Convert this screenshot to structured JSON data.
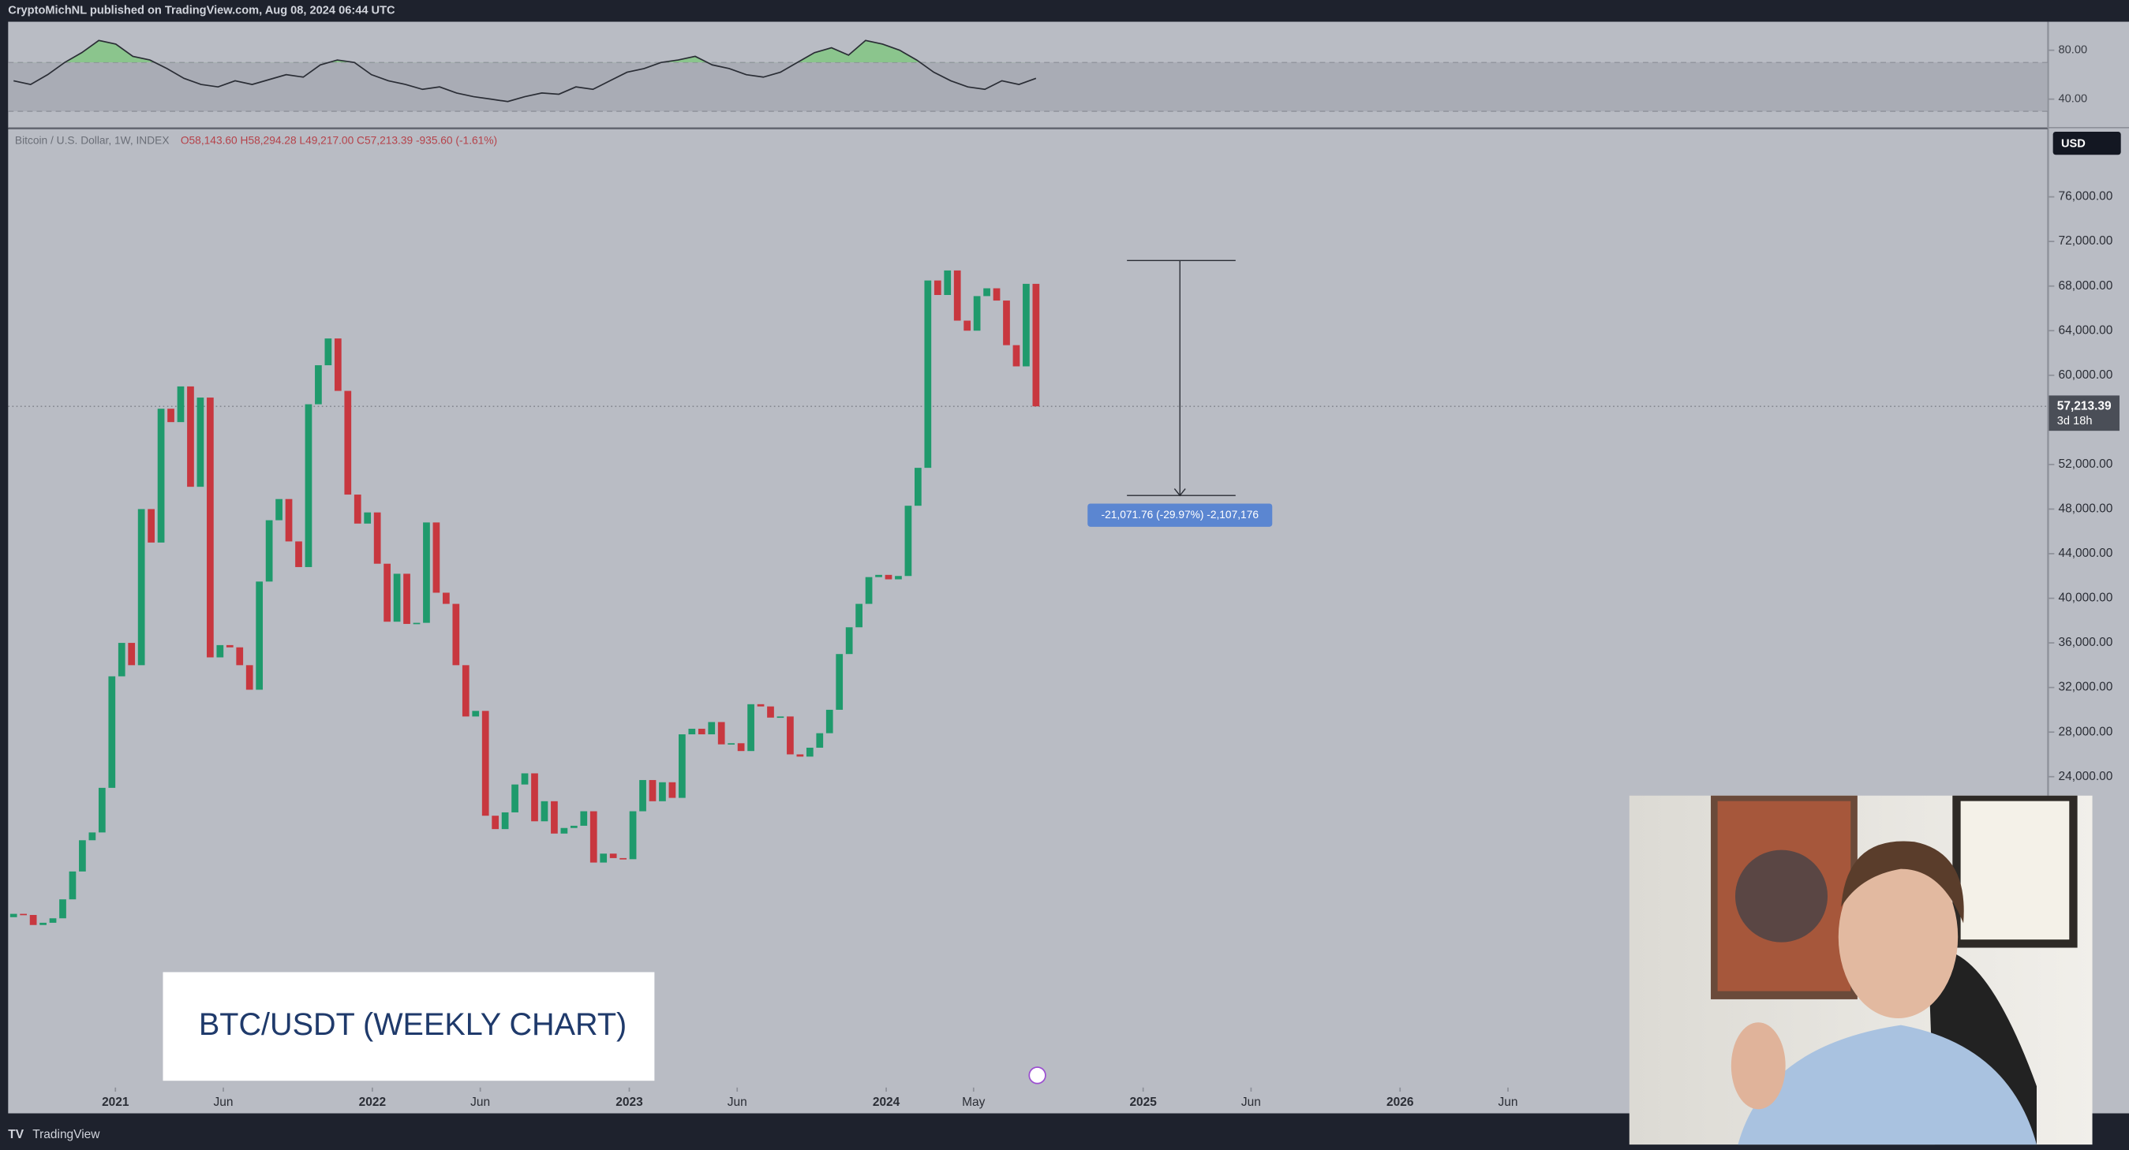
{
  "header": {
    "publisher": "CryptoMichNL published on TradingView.com, Aug 08, 2024 06:44 UTC"
  },
  "legend": {
    "symbol": "Bitcoin / U.S. Dollar, 1W, INDEX",
    "ohlc": "O58,143.60 H58,294.28 L49,217.00 C57,213.39 -935.60 (-1.61%)"
  },
  "chart": {
    "type": "candlestick",
    "up_color": "#1f9a6c",
    "down_color": "#c8373f",
    "open": 11400,
    "closes": [
      11700,
      11600,
      10700,
      10900,
      11300,
      13000,
      15500,
      18300,
      19000,
      23000,
      33000,
      36000,
      34000,
      48000,
      45000,
      57000,
      55800,
      59000,
      50000,
      58000,
      34700,
      35800,
      35600,
      34000,
      31800,
      41500,
      47000,
      48900,
      45100,
      42800,
      57400,
      60900,
      63300,
      58600,
      49300,
      46700,
      47700,
      43100,
      37900,
      42200,
      37700,
      37800,
      46800,
      40500,
      39500,
      34000,
      29400,
      29900,
      20500,
      19300,
      20800,
      23300,
      24300,
      20000,
      21800,
      18900,
      19400,
      19600,
      20900,
      16300,
      17100,
      16700,
      16600,
      20900,
      23700,
      21800,
      23500,
      22100,
      27800,
      28300,
      27800,
      28900,
      26900,
      27000,
      26300,
      30500,
      30300,
      29300,
      29400,
      26000,
      25800,
      26600,
      27900,
      30000,
      35000,
      37400,
      39500,
      41900,
      42100,
      41700,
      42000,
      48300,
      51700,
      68500,
      67200,
      69400,
      64900,
      64000,
      67100,
      67800,
      66700,
      62700,
      60800,
      68200,
      57213.39
    ],
    "ylim": [
      -3756,
      82088
    ],
    "yticks": [
      {
        "value": 76000,
        "label": "76,000.00"
      },
      {
        "value": 72000,
        "label": "72,000.00"
      },
      {
        "value": 68000,
        "label": "68,000.00"
      },
      {
        "value": 64000,
        "label": "64,000.00"
      },
      {
        "value": 60000,
        "label": "60,000.00"
      },
      {
        "value": 52000,
        "label": "52,000.00"
      },
      {
        "value": 48000,
        "label": "48,000.00"
      },
      {
        "value": 44000,
        "label": "44,000.00"
      },
      {
        "value": 40000,
        "label": "40,000.00"
      },
      {
        "value": 36000,
        "label": "36,000.00"
      },
      {
        "value": 32000,
        "label": "32,000.00"
      },
      {
        "value": 28000,
        "label": "28,000.00"
      },
      {
        "value": 24000,
        "label": "24,000.00"
      }
    ],
    "xlim": [
      2020.593,
      2028.52
    ],
    "xticks": [
      2021,
      {
        "value": 2021.42,
        "label": "Jun"
      },
      2022,
      {
        "value": 2022.42,
        "label": "Jun"
      },
      2023,
      {
        "value": 2023.42,
        "label": "Jun"
      },
      2024,
      {
        "value": 2024.34,
        "label": "May"
      },
      2025,
      {
        "value": 2025.42,
        "label": "Jun"
      },
      2026,
      {
        "value": 2026.42,
        "label": "Jun"
      }
    ],
    "current": {
      "value": 57213.39,
      "label": "57,213.39"
    },
    "countdown": "3d 18h",
    "currency": "USD",
    "measure": {
      "high": 70288.76,
      "low": 49217,
      "label": "-21,071.76 (-29.97%) -2,107,176"
    }
  },
  "rsi": {
    "values": [
      55,
      52,
      60,
      70,
      78,
      88,
      85,
      75,
      72,
      65,
      57,
      52,
      50,
      55,
      52,
      56,
      60,
      58,
      68,
      72,
      70,
      60,
      55,
      52,
      48,
      50,
      45,
      42,
      40,
      38,
      42,
      45,
      44,
      50,
      48,
      55,
      62,
      65,
      70,
      72,
      75,
      68,
      65,
      60,
      58,
      62,
      70,
      78,
      82,
      76,
      88,
      85,
      80,
      72,
      62,
      55,
      50,
      48,
      55,
      52,
      57
    ],
    "ylim": [
      18.9,
      102.2
    ],
    "band": [
      30,
      70
    ],
    "yticks": [
      {
        "value": 80,
        "label": "80.00"
      },
      {
        "value": 40,
        "label": "40.00"
      }
    ]
  },
  "overlay_caption": "BTC/USDT (WEEKLY CHART)",
  "footer": "TradingView"
}
